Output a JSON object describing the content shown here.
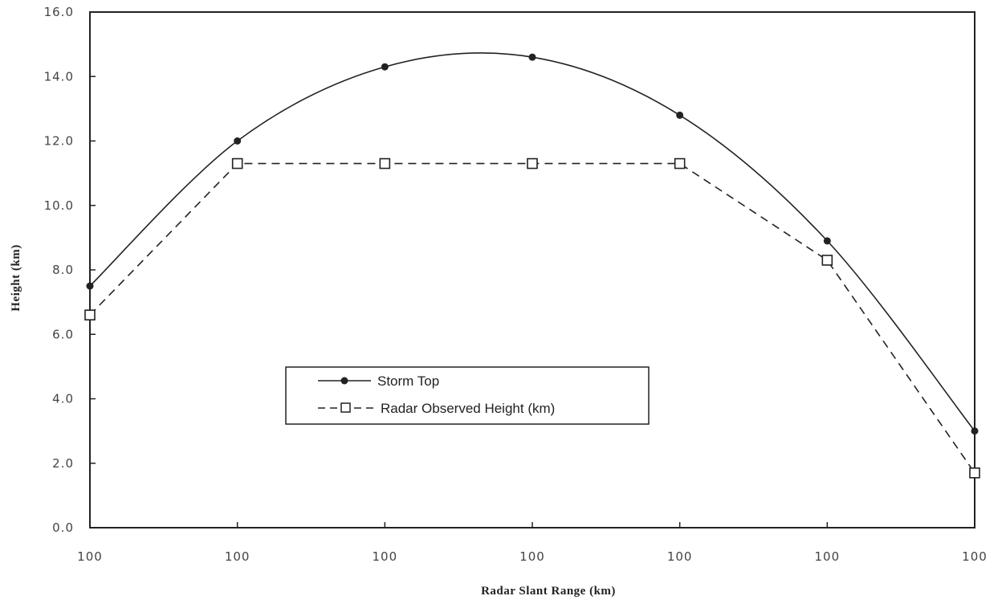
{
  "chart_data": {
    "type": "line",
    "title": "",
    "xlabel": "Radar Slant Range (km)",
    "ylabel": "Height (km)",
    "x_tick_labels": [
      "100",
      "100",
      "100",
      "100",
      "100",
      "100",
      "100"
    ],
    "y_tick_labels": [
      "0.0",
      "2.0",
      "4.0",
      "6.0",
      "8.0",
      "10.0",
      "12.0",
      "14.0",
      "16.0"
    ],
    "ylim": [
      0,
      16
    ],
    "grid": false,
    "legend_position": "center-left",
    "series": [
      {
        "name": "Storm Top",
        "marker": "filled-circle",
        "line_style": "solid",
        "color": "#222222",
        "values": [
          7.5,
          12.0,
          14.3,
          14.6,
          12.8,
          8.9,
          3.0
        ]
      },
      {
        "name": "Radar Observed Height (km)",
        "marker": "open-square",
        "line_style": "dashed",
        "color": "#222222",
        "values": [
          6.6,
          11.3,
          11.3,
          11.3,
          11.3,
          8.3,
          1.7
        ]
      }
    ]
  }
}
